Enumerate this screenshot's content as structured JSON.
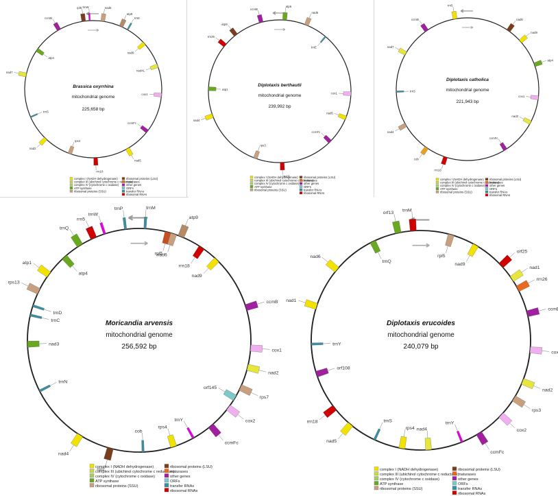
{
  "maps": [
    {
      "species": "Brassica oxyrrhina",
      "subtitle": "mitochondrial genome",
      "size": "225,658 bp",
      "genes": [
        {
          "label": "rpl5",
          "a": 352,
          "c": "#7a3e1e",
          "o": 1
        },
        {
          "label": "trnW",
          "a": 357,
          "c": "#e600e6",
          "o": 1
        },
        {
          "label": "nad6",
          "a": 8,
          "c": "#c8a080",
          "o": 1
        },
        {
          "label": "atp9",
          "a": 24,
          "c": "#b58a66",
          "o": 1
        },
        {
          "label": "trnE",
          "a": 30,
          "c": "#3a8fa0",
          "o": 1
        },
        {
          "label": "nad9",
          "a": 48,
          "c": "#f2e200",
          "o": 0
        },
        {
          "label": "nad4L",
          "a": 70,
          "c": "#e6e63c",
          "o": 0
        },
        {
          "label": "cox1",
          "a": 95,
          "c": "#f0b0f0",
          "o": 0
        },
        {
          "label": "ccmFc",
          "a": 128,
          "c": "#a020a0",
          "o": 0
        },
        {
          "label": "nad5",
          "a": 150,
          "c": "#f2e200",
          "o": 1
        },
        {
          "label": "rrn18",
          "a": 178,
          "c": "#d00000",
          "o": 1
        },
        {
          "label": "rps4",
          "a": 200,
          "c": "#c8a080",
          "o": 0
        },
        {
          "label": "nad2",
          "a": 224,
          "c": "#f2e200",
          "o": 1
        },
        {
          "label": "trnS",
          "a": 246,
          "c": "#3a8fa0",
          "o": 0
        },
        {
          "label": "nad7",
          "a": 282,
          "c": "#e6e63c",
          "o": 1
        },
        {
          "label": "atp4",
          "a": 305,
          "c": "#6aa820",
          "o": 0
        },
        {
          "label": "ccmB",
          "a": 330,
          "c": "#a020a0",
          "o": 1
        }
      ],
      "legend": [
        "complex I (NADH dehydrogenase)",
        "complex III (ubichinol cytochrome c reductase)",
        "complex IV (cytochrome c oxidase)",
        "ATP synthase",
        "ribosomal proteins (SSU)",
        "ribosomal proteins (LSU)",
        "maturases",
        "other genes",
        "ORFs",
        "transfer RNAs",
        "ribosomal RNAs"
      ]
    },
    {
      "species": "Diplotaxis berthautii",
      "subtitle": "mitochondrial genome",
      "size": "239,992 bp",
      "genes": [
        {
          "label": "atp6",
          "a": 4,
          "c": "#6aa820",
          "o": 1
        },
        {
          "label": "nad6",
          "a": 22,
          "c": "#c8a080",
          "o": 1
        },
        {
          "label": "trnE",
          "a": 40,
          "c": "#3a8fa0",
          "o": 0
        },
        {
          "label": "cox1",
          "a": 92,
          "c": "#f0b0f0",
          "o": 0
        },
        {
          "label": "nad5",
          "a": 112,
          "c": "#f2e200",
          "o": 0
        },
        {
          "label": "ccmFc",
          "a": 135,
          "c": "#a020a0",
          "o": 0
        },
        {
          "label": "rrn18",
          "a": 178,
          "c": "#d00000",
          "o": 1
        },
        {
          "label": "rps3",
          "a": 200,
          "c": "#c8a080",
          "o": 0
        },
        {
          "label": "nad4",
          "a": 250,
          "c": "#f2e200",
          "o": 1
        },
        {
          "label": "atp1",
          "a": 272,
          "c": "#6aa820",
          "o": 0
        },
        {
          "label": "rrn26",
          "a": 310,
          "c": "#d00000",
          "o": 1
        },
        {
          "label": "atp9",
          "a": 322,
          "c": "#7a3e1e",
          "o": 1
        },
        {
          "label": "ccmB",
          "a": 345,
          "c": "#a020a0",
          "o": 1
        }
      ],
      "legend": [
        "complex I (NADH dehydrogenase)",
        "complex III (ubichinol cytochrome c reductase)",
        "complex IV (cytochrome c oxidase)",
        "ATP synthase",
        "ribosomal proteins (SSU)",
        "ribosomal proteins (LSU)",
        "maturases",
        "other genes",
        "ORFs",
        "transfer RNAs",
        "ribosomal RNAs"
      ]
    },
    {
      "species": "Diplotaxis catholica",
      "subtitle": "mitochondrial genome",
      "size": "221,943 bp",
      "genes": [
        {
          "label": "rrn5",
          "a": 350,
          "c": "#f2e200",
          "o": 1
        },
        {
          "label": "nad6",
          "a": 35,
          "c": "#7a3e1e",
          "o": 1
        },
        {
          "label": "nad9",
          "a": 48,
          "c": "#f2e200",
          "o": 1
        },
        {
          "label": "atp4",
          "a": 70,
          "c": "#6aa820",
          "o": 1
        },
        {
          "label": "cox1",
          "a": 97,
          "c": "#f0b0f0",
          "o": 0
        },
        {
          "label": "nad2",
          "a": 118,
          "c": "#e6e63c",
          "o": 0
        },
        {
          "label": "ccmFc",
          "a": 148,
          "c": "#a020a0",
          "o": 0
        },
        {
          "label": "rrn18",
          "a": 198,
          "c": "#d00000",
          "o": 1
        },
        {
          "label": "cob",
          "a": 215,
          "c": "#e8a020",
          "o": 1
        },
        {
          "label": "nad4",
          "a": 240,
          "c": "#c8a080",
          "o": 1
        },
        {
          "label": "trnS",
          "a": 268,
          "c": "#3a8fa0",
          "o": 0
        },
        {
          "label": "nad7",
          "a": 300,
          "c": "#e6e63c",
          "o": 1
        },
        {
          "label": "ccmB",
          "a": 325,
          "c": "#a020a0",
          "o": 1
        }
      ],
      "legend": [
        "complex I (NADH dehydrogenase)",
        "complex III (ubichinol cytochrome c reductase)",
        "complex IV (cytochrome c oxidase)",
        "ATP synthase",
        "ribosomal proteins (SSU)",
        "ribosomal proteins (LSU)",
        "maturases",
        "other genes",
        "ORFs",
        "transfer RNAs",
        "ribosomal RNAs"
      ]
    },
    {
      "species": "Moricandia arvensis",
      "subtitle": "mitochondrial genome",
      "size": "256,592 bp",
      "genes": [
        {
          "label": "rrn5",
          "a": 336,
          "c": "#d00000",
          "o": 1
        },
        {
          "label": "trnW",
          "a": 342,
          "c": "#e600e6",
          "o": 1
        },
        {
          "label": "trnP",
          "a": 353,
          "c": "#3a8fa0",
          "o": 1
        },
        {
          "label": "trnM",
          "a": 3,
          "c": "#3a8fa0",
          "o": 1
        },
        {
          "label": "rpl5",
          "a": 15,
          "c": "#c85020",
          "o": 0
        },
        {
          "label": "nad6",
          "a": 18,
          "c": "#c8a080",
          "o": 0
        },
        {
          "label": "atp9",
          "a": 22,
          "c": "#b58a66",
          "o": 1
        },
        {
          "label": "rrn18",
          "a": 34,
          "c": "#d00000",
          "o": 0
        },
        {
          "label": "nad9",
          "a": 44,
          "c": "#f2e200",
          "o": 0
        },
        {
          "label": "ccmB",
          "a": 73,
          "c": "#a020a0",
          "o": 1
        },
        {
          "label": "cox1",
          "a": 94,
          "c": "#f0b0f0",
          "o": 1
        },
        {
          "label": "nad2",
          "a": 104,
          "c": "#e6e63c",
          "o": 1
        },
        {
          "label": "rps7",
          "a": 115,
          "c": "#c8a080",
          "o": 1
        },
        {
          "label": "orf145",
          "a": 121,
          "c": "#7ec8c8",
          "o": 0
        },
        {
          "label": "cox2",
          "a": 127,
          "c": "#f0b0f0",
          "o": 1
        },
        {
          "label": "ccmFc",
          "a": 140,
          "c": "#a020a0",
          "o": 1
        },
        {
          "label": "trnY",
          "a": 151,
          "c": "#e600e6",
          "o": 0
        },
        {
          "label": "rps4",
          "a": 162,
          "c": "#f2e200",
          "o": 0
        },
        {
          "label": "cob",
          "a": 178,
          "c": "#3a8fa0",
          "o": 0
        },
        {
          "label": "rpl2",
          "a": 195,
          "c": "#7a3e1e",
          "o": 1
        },
        {
          "label": "nad4",
          "a": 212,
          "c": "#f2e200",
          "o": 1
        },
        {
          "label": "trnN",
          "a": 243,
          "c": "#3a8fa0",
          "o": 0
        },
        {
          "label": "nad3",
          "a": 268,
          "c": "#6aa820",
          "o": 0
        },
        {
          "label": "trnC",
          "a": 283,
          "c": "#3a8fa0",
          "o": 0
        },
        {
          "label": "trnD",
          "a": 288,
          "c": "#3a8fa0",
          "o": 0
        },
        {
          "label": "rps13",
          "a": 296,
          "c": "#c8a080",
          "o": 1
        },
        {
          "label": "atp1",
          "a": 306,
          "c": "#f2e200",
          "o": 1
        },
        {
          "label": "atp4",
          "a": 318,
          "c": "#6aa820",
          "o": 0
        },
        {
          "label": "trnQ",
          "a": 328,
          "c": "#6aa820",
          "o": 1
        }
      ],
      "legend": [
        "complex I (NADH dehydrogenase)",
        "complex III (ubichinol cytochrome c reductase)",
        "complex IV (cytochrome c oxidase)",
        "ATP synthase",
        "ribosomal proteins (SSU)",
        "ribosomal proteins (LSU)",
        "maturases",
        "other genes",
        "ORFs",
        "transfer RNAs",
        "ribosomal RNAs"
      ]
    },
    {
      "species": "Diplotaxis erucoides",
      "subtitle": "mitochondrial genome",
      "size": "240,079 bp",
      "genes": [
        {
          "label": "trnM",
          "a": 356,
          "c": "#d00000",
          "o": 1
        },
        {
          "label": "rpl5",
          "a": 16,
          "c": "#c8a080",
          "o": 0
        },
        {
          "label": "nad9",
          "a": 30,
          "c": "#f2e200",
          "o": 0
        },
        {
          "label": "orf25",
          "a": 47,
          "c": "#d00000",
          "o": 1
        },
        {
          "label": "nad1",
          "a": 56,
          "c": "#e6e63c",
          "o": 1
        },
        {
          "label": "rrn26",
          "a": 62,
          "c": "#e86a20",
          "o": 1
        },
        {
          "label": "ccmB",
          "a": 76,
          "c": "#a020a0",
          "o": 1
        },
        {
          "label": "cox1",
          "a": 95,
          "c": "#f0b0f0",
          "o": 1
        },
        {
          "label": "nad2",
          "a": 112,
          "c": "#e6e63c",
          "o": 1
        },
        {
          "label": "rps3",
          "a": 122,
          "c": "#c8a080",
          "o": 1
        },
        {
          "label": "cox2",
          "a": 133,
          "c": "#f0b0f0",
          "o": 1
        },
        {
          "label": "ccmFc",
          "a": 148,
          "c": "#a020a0",
          "o": 1
        },
        {
          "label": "trnY",
          "a": 158,
          "c": "#e600e6",
          "o": 0
        },
        {
          "label": "nad4",
          "a": 176,
          "c": "#e6e63c",
          "o": 0
        },
        {
          "label": "rps4",
          "a": 190,
          "c": "#f2e200",
          "o": 0
        },
        {
          "label": "trnS",
          "a": 205,
          "c": "#3a8fa0",
          "o": 0
        },
        {
          "label": "nad5",
          "a": 220,
          "c": "#f2e200",
          "o": 1
        },
        {
          "label": "rrn18",
          "a": 232,
          "c": "#d00000",
          "o": 1
        },
        {
          "label": "orf108",
          "a": 252,
          "c": "#a020a0",
          "o": 0
        },
        {
          "label": "trnY",
          "a": 268,
          "c": "#3a8fa0",
          "o": 0
        },
        {
          "label": "nad1",
          "a": 288,
          "c": "#f2e200",
          "o": 1
        },
        {
          "label": "nad6",
          "a": 310,
          "c": "#f2e200",
          "o": 1
        },
        {
          "label": "trnQ",
          "a": 334,
          "c": "#6aa820",
          "o": 0
        },
        {
          "label": "orf13",
          "a": 348,
          "c": "#6aa820",
          "o": 1
        }
      ],
      "legend": [
        "complex I (NADH dehydrogenase)",
        "complex III (ubichinol cytochrome c reductase)",
        "complex IV (cytochrome c oxidase)",
        "ATP synthase",
        "ribosomal proteins (SSU)",
        "ribosomal proteins (LSU)",
        "maturases",
        "other genes",
        "ORFs",
        "transfer RNAs",
        "ribosomal RNAs"
      ]
    }
  ],
  "legend_colors": [
    "#f2e200",
    "#c9d84c",
    "#a8cc6a",
    "#6aa820",
    "#c8a080",
    "#7a3e1e",
    "#e86a20",
    "#a020a0",
    "#7ec8c8",
    "#3a8fa0",
    "#d00000"
  ]
}
